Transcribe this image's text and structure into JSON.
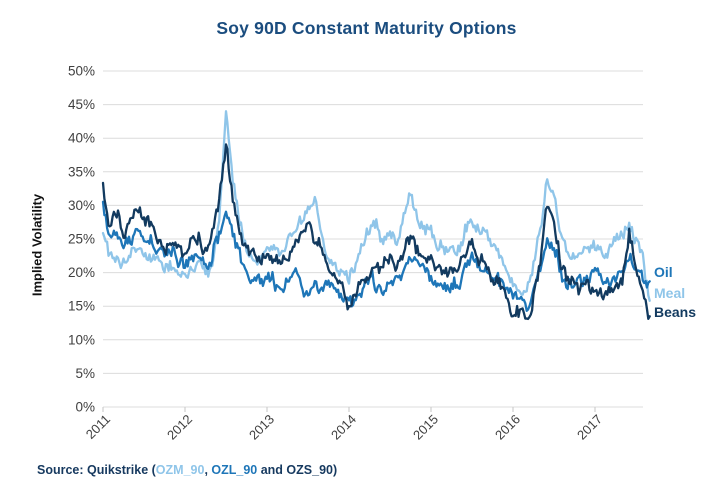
{
  "colors": {
    "background": "#ffffff",
    "title": "#1b4d7f",
    "grid": "#dcdcdc",
    "axis_tick": "#c6c6c6",
    "axis_text": "#3f3f3f",
    "source_text": "#16395f"
  },
  "source": {
    "prefix": "Source: Quikstrike (",
    "ozm_code": "OZM_90",
    "separator": ", ",
    "mid": " and ",
    "ozs_code": "OZS_90",
    "close": ")",
    "ozl_code": "OZL_90"
  },
  "chart_data": {
    "type": "line",
    "title": "Soy 90D Constant Maturity Options",
    "ylabel": "Implied Volatility",
    "xlabel": "",
    "ylim": [
      0,
      50
    ],
    "y_tick_step": 5,
    "y_tick_labels": [
      "0%",
      "5%",
      "10%",
      "15%",
      "20%",
      "25%",
      "30%",
      "35%",
      "40%",
      "45%",
      "50%"
    ],
    "x_tick_labels": [
      "2011",
      "2012",
      "2013",
      "2014",
      "2015",
      "2016",
      "2017"
    ],
    "x_unit": "monthly anchors, Jan 2011 - Sep 2017 (values are implied volatility %)",
    "grid": "horizontal",
    "legend_position": "right",
    "draw_order": [
      "Meal",
      "Oil",
      "Beans"
    ],
    "series": [
      {
        "name": "Oil",
        "code": "OZL_90",
        "color": "#1e76b8",
        "monthly_values": [
          30,
          25.5,
          26,
          24,
          25,
          26,
          24.5,
          25.5,
          23.5,
          22.5,
          22,
          21.5,
          21,
          21.5,
          22,
          20.5,
          22,
          26,
          29.5,
          26,
          23.5,
          21,
          19.5,
          19,
          18.5,
          18,
          17.5,
          18,
          18.5,
          18,
          16.5,
          17.5,
          17,
          16.5,
          16,
          16,
          15.5,
          16.5,
          18,
          18.5,
          18,
          17.5,
          18.5,
          19,
          20.5,
          22,
          21,
          20.5,
          20,
          19,
          18.5,
          18,
          18.5,
          20.5,
          22,
          21,
          20,
          19,
          18,
          17,
          16,
          15.5,
          15.5,
          17,
          21,
          26,
          24,
          21,
          19.5,
          19,
          19.5,
          19.5,
          20,
          19.5,
          19,
          19.5,
          20,
          23.5,
          21.5,
          20,
          18.7
        ]
      },
      {
        "name": "Meal",
        "code": "OZM_90",
        "color": "#8fc5e9",
        "monthly_values": [
          26,
          23,
          23.5,
          22,
          23.5,
          24,
          22.5,
          23,
          21.5,
          20.5,
          21,
          20.5,
          20,
          20.5,
          21,
          19.5,
          22,
          29,
          43.5,
          33,
          27.5,
          23,
          22,
          22.5,
          23,
          24,
          23,
          24.5,
          26,
          27.5,
          29,
          31.5,
          26,
          23,
          21,
          20.5,
          20,
          21.5,
          24,
          26.5,
          27,
          25,
          26.5,
          25,
          28,
          32,
          29,
          27.5,
          26,
          24.5,
          24,
          23.5,
          24,
          27,
          28.5,
          26.5,
          25.5,
          24,
          22.5,
          21,
          18.5,
          17.5,
          17,
          20,
          26,
          34.5,
          31,
          26,
          23.5,
          23,
          23.5,
          23,
          23.5,
          23,
          22.5,
          23.5,
          24.5,
          27,
          25,
          22.5,
          15.8
        ]
      },
      {
        "name": "Beans",
        "code": "OZS_90",
        "color": "#123a5f",
        "monthly_values": [
          33,
          27,
          28.5,
          26.5,
          28,
          28.5,
          27,
          28,
          25,
          23.5,
          24,
          23,
          23.5,
          24.5,
          25.5,
          23,
          25,
          30,
          38,
          30.5,
          27,
          24,
          22.5,
          23,
          23,
          22.5,
          21.5,
          23,
          24,
          25,
          25.5,
          24,
          22.5,
          19.5,
          18,
          17.5,
          15.5,
          17.5,
          19.5,
          20,
          21,
          20,
          22,
          21.5,
          24,
          26,
          23,
          22,
          21.5,
          20,
          19.5,
          19,
          19.5,
          23,
          24.5,
          22,
          21,
          19.5,
          18,
          16.5,
          14.5,
          13.5,
          13,
          16,
          22,
          30.5,
          28,
          21.5,
          19,
          18,
          17.5,
          18,
          18,
          17.5,
          17,
          18,
          19,
          26.5,
          21,
          18.5,
          13.5
        ]
      }
    ]
  }
}
